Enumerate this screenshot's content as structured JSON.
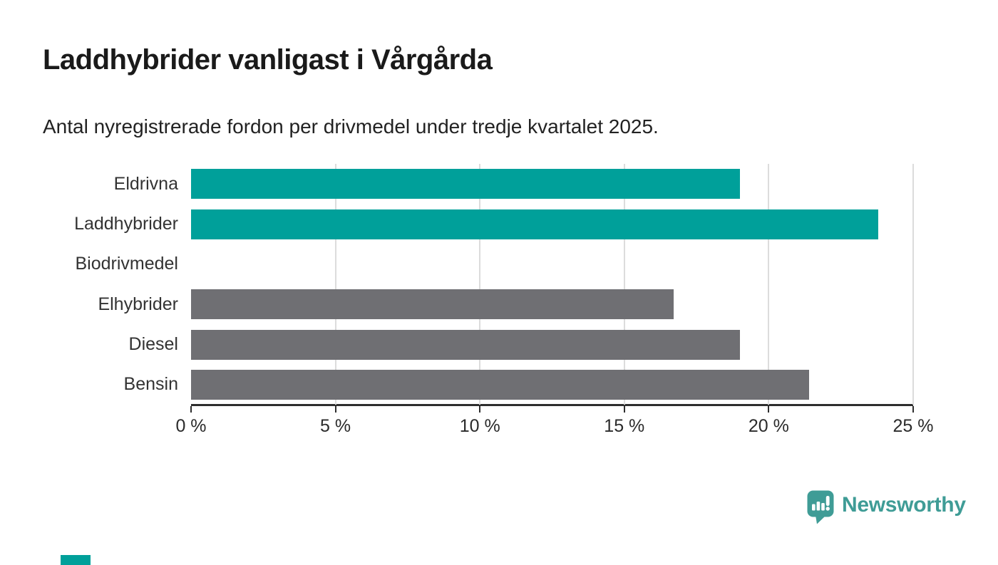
{
  "title": "Laddhybrider vanligast i Vårgårda",
  "subtitle": "Antal nyregistrerade fordon per drivmedel under tredje kvartalet 2025.",
  "chart_data": {
    "type": "bar",
    "orientation": "horizontal",
    "title": "Laddhybrider vanligast i Vårgårda",
    "subtitle": "Antal nyregistrerade fordon per drivmedel under tredje kvartalet 2025.",
    "categories": [
      "Eldrivna",
      "Laddhybrider",
      "Biodrivmedel",
      "Elhybrider",
      "Diesel",
      "Bensin"
    ],
    "values": [
      19.0,
      23.8,
      0,
      16.7,
      19.0,
      21.4
    ],
    "unit": "%",
    "bar_colors": [
      "#00a09a",
      "#00a09a",
      "#6f6f73",
      "#6f6f73",
      "#6f6f73",
      "#6f6f73"
    ],
    "xlim": [
      0,
      25
    ],
    "x_ticks": [
      0,
      5,
      10,
      15,
      20,
      25
    ],
    "x_tick_labels": [
      "0 %",
      "5 %",
      "10 %",
      "15 %",
      "20 %",
      "25 %"
    ],
    "grid": "vertical-only",
    "legend": "none"
  },
  "colors": {
    "highlight": "#00a09a",
    "neutral": "#6f6f73",
    "gridline": "#dcdcdc",
    "axis": "#2e2e2e",
    "logo": "#3f9c96"
  },
  "logo": {
    "text": "Newsworthy",
    "icon": "newsworthy-pin-barchart-icon"
  },
  "footer": {
    "brand_mark_color": "#00a09a"
  }
}
